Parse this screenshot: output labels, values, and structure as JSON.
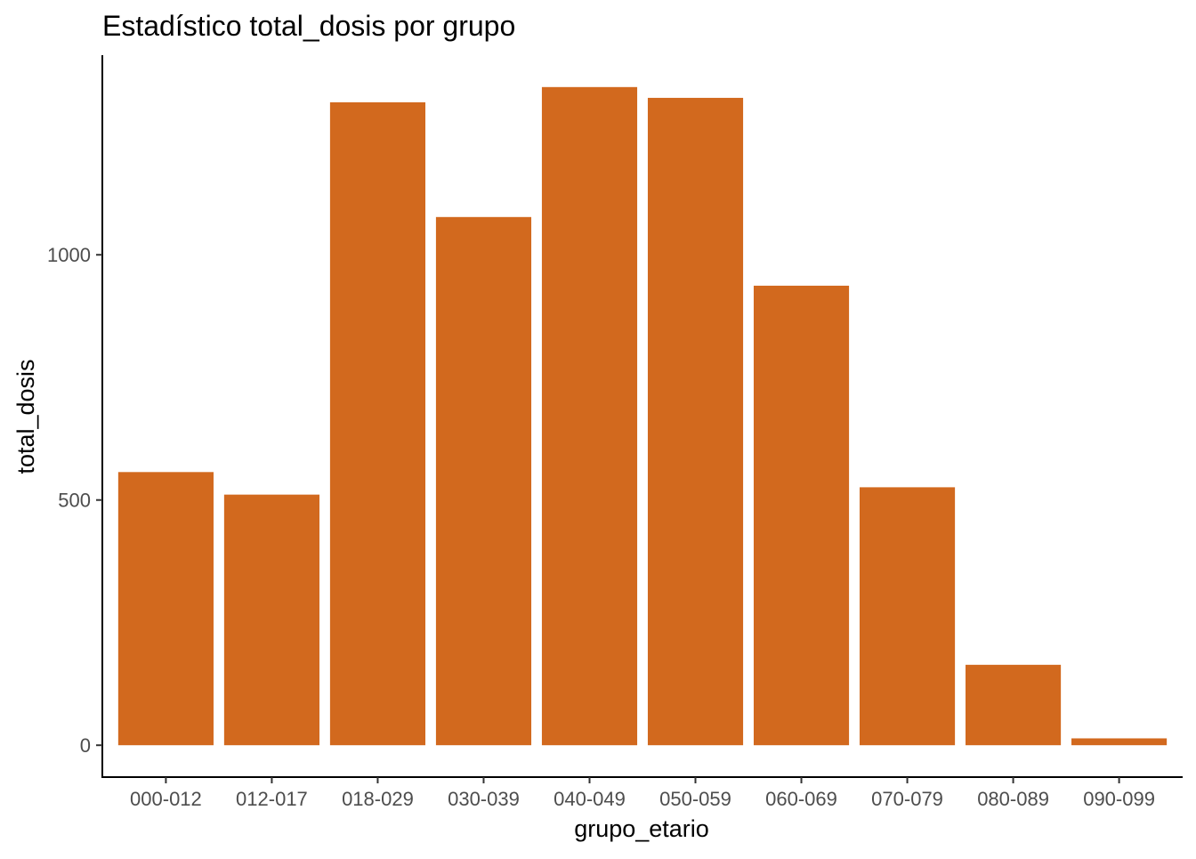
{
  "chart_data": {
    "type": "bar",
    "title": "Estadístico total_dosis por grupo",
    "xlabel": "grupo_etario",
    "ylabel": "total_dosis",
    "categories": [
      "000-012",
      "012-017",
      "018-029",
      "030-039",
      "040-049",
      "050-059",
      "060-069",
      "070-079",
      "080-089",
      "090-099"
    ],
    "values": [
      557,
      511,
      1311,
      1077,
      1342,
      1320,
      937,
      526,
      164,
      14
    ],
    "y_ticks": [
      0,
      500,
      1000
    ],
    "y_tick_labels": [
      "0",
      "500",
      "1000"
    ],
    "ylim": [
      -65,
      1407
    ],
    "bar_color": "#D2691E",
    "grid": false,
    "legend": "none"
  }
}
